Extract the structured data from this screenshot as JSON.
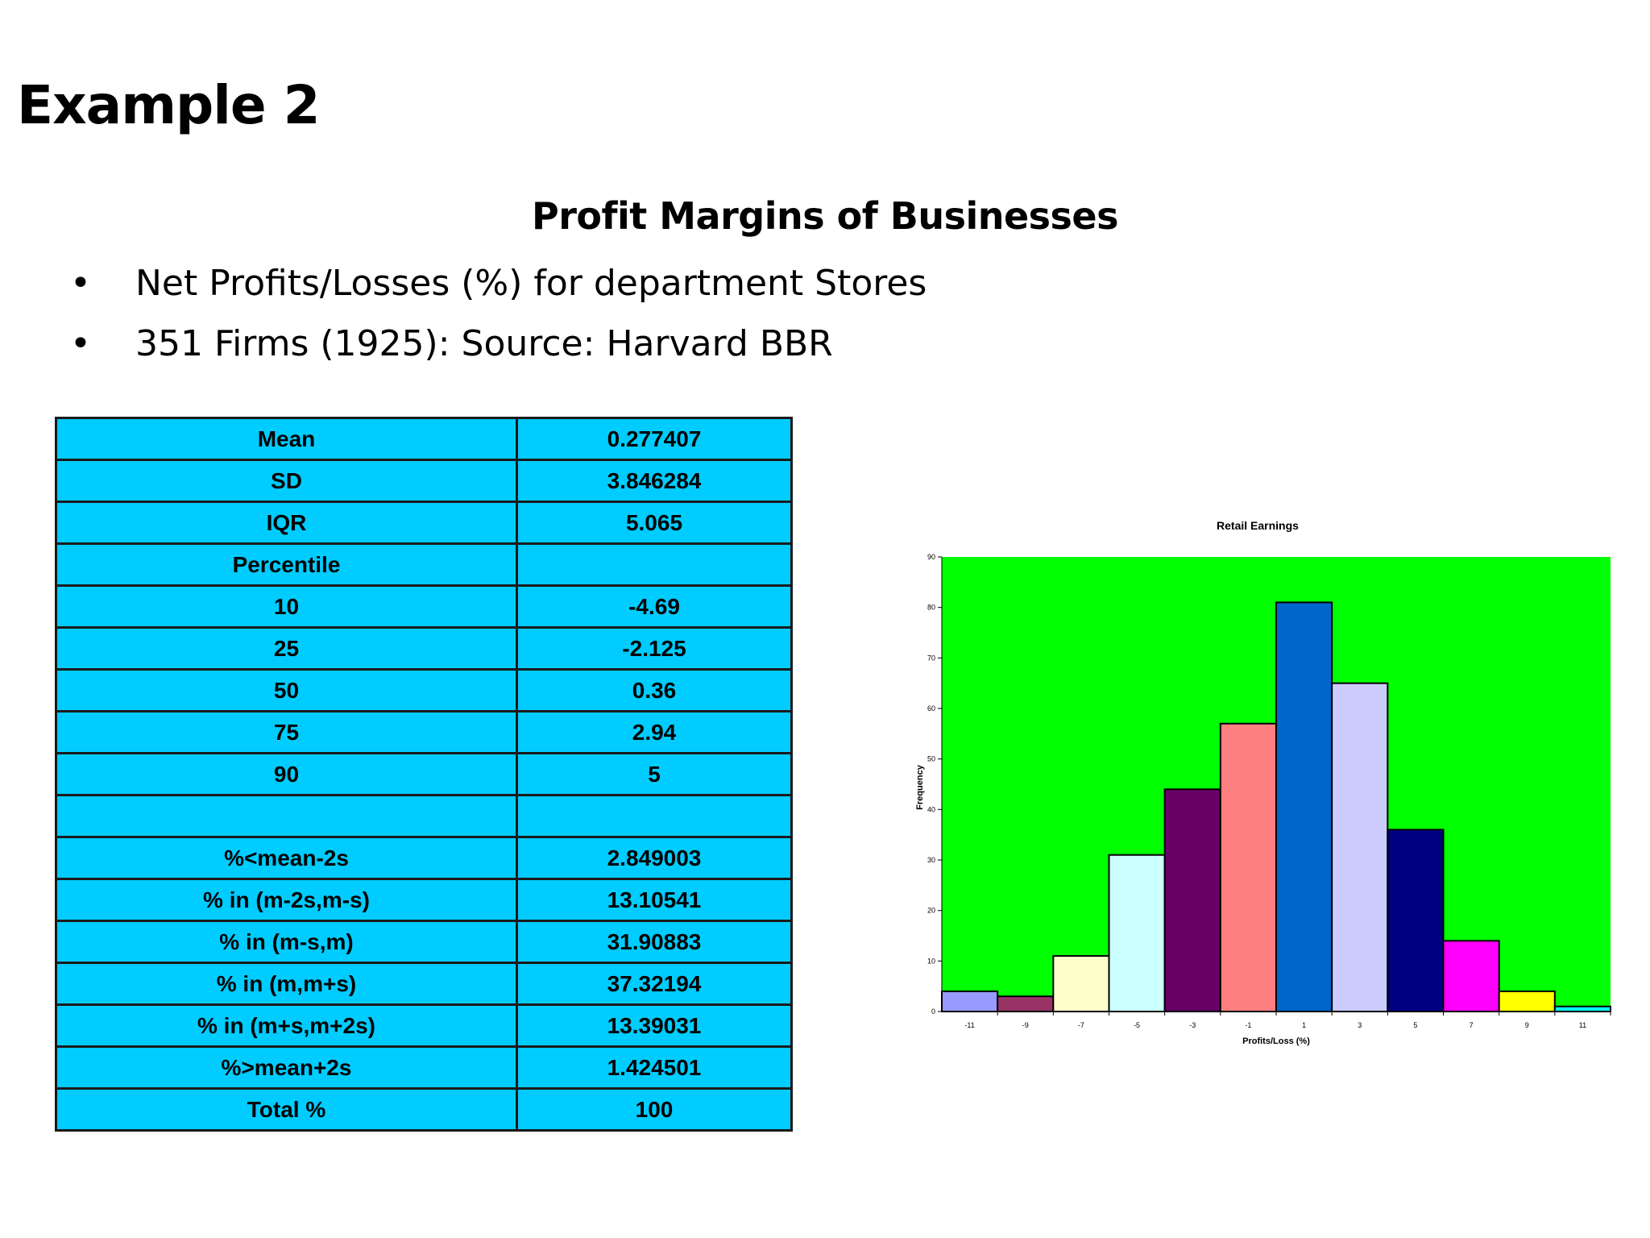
{
  "slide": {
    "title": "Example 2",
    "subtitle": "Profit Margins of Businesses",
    "bullet_symbol": "•",
    "bullets": [
      "Net Profits/Losses (%) for department Stores",
      "351 Firms (1925): Source: Harvard BBR"
    ]
  },
  "stats_table": {
    "rows": [
      {
        "label": "Mean",
        "value": "0.277407"
      },
      {
        "label": "SD",
        "value": "3.846284"
      },
      {
        "label": "IQR",
        "value": "5.065"
      },
      {
        "label": "Percentile",
        "value": ""
      },
      {
        "label": "10",
        "value": "-4.69"
      },
      {
        "label": "25",
        "value": "-2.125"
      },
      {
        "label": "50",
        "value": "0.36"
      },
      {
        "label": "75",
        "value": "2.94"
      },
      {
        "label": "90",
        "value": "5"
      },
      {
        "label": "",
        "value": ""
      },
      {
        "label": "%<mean-2s",
        "value": "2.849003"
      },
      {
        "label": "% in (m-2s,m-s)",
        "value": "13.10541"
      },
      {
        "label": "% in (m-s,m)",
        "value": "31.90883"
      },
      {
        "label": "% in (m,m+s)",
        "value": "37.32194"
      },
      {
        "label": "% in (m+s,m+2s)",
        "value": "13.39031"
      },
      {
        "label": "%>mean+2s",
        "value": "1.424501"
      },
      {
        "label": "Total %",
        "value": "100"
      }
    ]
  },
  "chart_data": {
    "type": "bar",
    "title": "Retail Earnings",
    "xlabel": "Profits/Loss (%)",
    "ylabel": "Frequency",
    "categories": [
      "-11",
      "-9",
      "-7",
      "-5",
      "-3",
      "-1",
      "1",
      "3",
      "5",
      "7",
      "9",
      "11"
    ],
    "values": [
      4,
      3,
      11,
      31,
      44,
      57,
      81,
      65,
      36,
      14,
      4,
      1
    ],
    "bar_colors": [
      "#9999ff",
      "#993366",
      "#ffffcc",
      "#ccffff",
      "#660066",
      "#ff8080",
      "#0066cc",
      "#ccccff",
      "#000080",
      "#ff00ff",
      "#ffff00",
      "#00ffff"
    ],
    "plot_background": "#00ff00",
    "ylim": [
      0,
      90
    ],
    "yticks": [
      0,
      10,
      20,
      30,
      40,
      50,
      60,
      70,
      80,
      90
    ],
    "gridlines": false,
    "legend": "none"
  }
}
